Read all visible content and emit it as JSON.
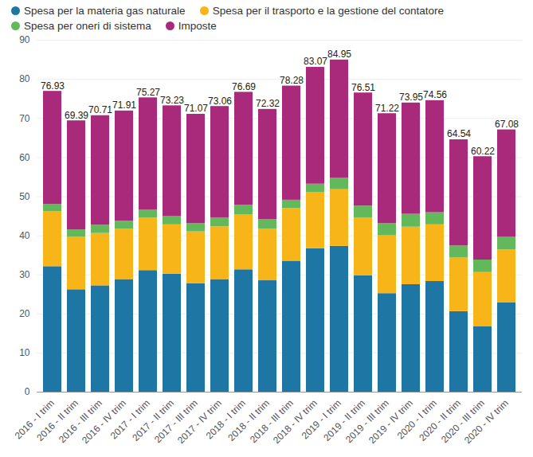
{
  "chart_data": {
    "type": "bar",
    "stacked": true,
    "grid": true,
    "legend": "top",
    "categories": [
      "2016 - I trim",
      "2016 - II trim",
      "2016 - III trim",
      "2016 - IV trim",
      "2017 - I trim",
      "2017 - II trim",
      "2017 - III trim",
      "2017 - IV trim",
      "2018 - I trim",
      "2018 - II trim",
      "2018 - III trim",
      "2018 - IV trim",
      "2019 - I trim",
      "2019 - II trim",
      "2019 - III trim",
      "2019 - IV trim",
      "2020 - I trim",
      "2020 - II trim",
      "2020 - III trim",
      "2020 - IV trim"
    ],
    "series": [
      {
        "name": "Spesa per la materia gas naturale",
        "color": "#1d76a3",
        "values": [
          32.1,
          26.2,
          27.2,
          28.8,
          31.1,
          30.2,
          27.7,
          28.8,
          31.3,
          28.5,
          33.5,
          36.7,
          37.3,
          29.8,
          25.2,
          27.5,
          28.3,
          20.6,
          16.7,
          22.9
        ]
      },
      {
        "name": "Spesa per il trasporto e la gestione del contatore",
        "color": "#f7b519",
        "values": [
          14.1,
          13.5,
          13.4,
          12.9,
          13.4,
          12.6,
          13.3,
          13.5,
          14.1,
          13.2,
          13.5,
          14.4,
          14.5,
          14.8,
          14.8,
          14.7,
          14.5,
          13.8,
          13.9,
          13.5
        ]
      },
      {
        "name": "Spesa per oneri di sistema",
        "color": "#62b85a",
        "values": [
          1.8,
          1.8,
          2.1,
          2.0,
          2.1,
          2.1,
          2.1,
          2.3,
          2.4,
          2.4,
          2.1,
          2.1,
          2.9,
          3.0,
          3.1,
          3.3,
          3.1,
          3.0,
          3.2,
          3.2
        ]
      },
      {
        "name": "Imposte",
        "color": "#a9297a",
        "values": [
          28.93,
          27.89,
          28.01,
          28.21,
          28.67,
          28.33,
          27.97,
          28.46,
          28.89,
          28.22,
          29.18,
          29.87,
          30.25,
          28.91,
          28.12,
          28.45,
          28.66,
          27.14,
          26.42,
          27.48
        ]
      }
    ],
    "totals": [
      76.93,
      69.39,
      70.71,
      71.91,
      75.27,
      73.23,
      71.07,
      73.06,
      76.69,
      72.32,
      78.28,
      83.07,
      84.95,
      76.51,
      71.22,
      73.95,
      74.56,
      64.54,
      60.22,
      67.08
    ],
    "ylim": [
      0,
      90
    ],
    "yticks": [
      0,
      10,
      20,
      30,
      40,
      50,
      60,
      70,
      80,
      90
    ]
  }
}
